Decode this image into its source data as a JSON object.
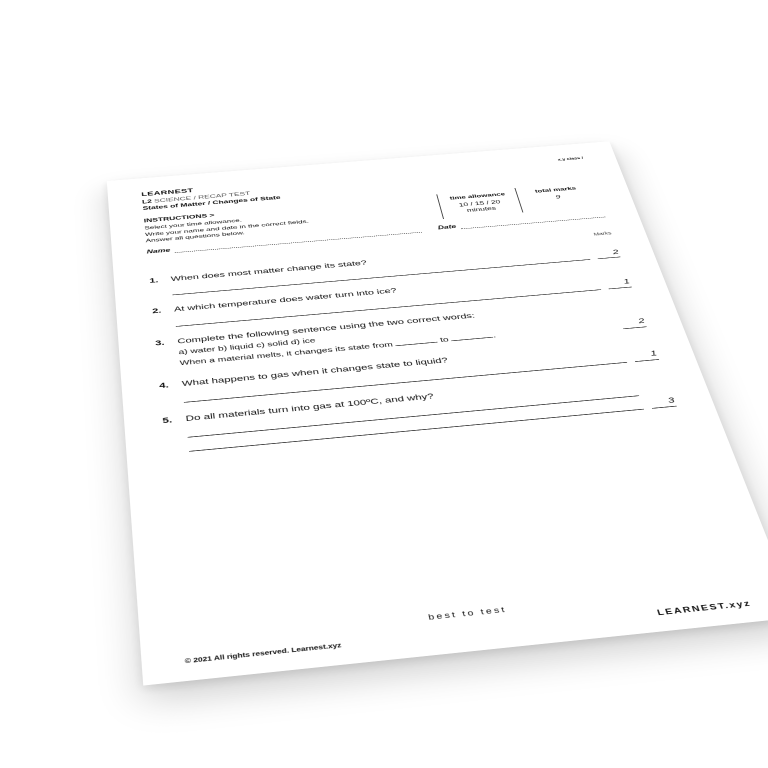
{
  "header": {
    "brand": "LEARNEST",
    "level": "L2",
    "subject": "SCIENCE / RECAP TEST",
    "topic": "States of Matter",
    "subtopic": "Changes of State",
    "classno": "x.y class /"
  },
  "instructions": {
    "title": "INSTRUCTIONS  >",
    "lines": [
      "Select your time allowance.",
      "Write your name and date in the correct fields.",
      "Answer all questions below."
    ]
  },
  "time_allowance": {
    "label": "time allowance",
    "value": "10 / 15 / 20",
    "unit": "minutes"
  },
  "total_marks": {
    "label": "total marks",
    "value": "9"
  },
  "fields": {
    "name_label": "Name",
    "date_label": "Date"
  },
  "marks_header": "Marks",
  "questions": [
    {
      "num": "1.",
      "text": "When does most matter change its state?",
      "marks": "2",
      "answer_lines": 1
    },
    {
      "num": "2.",
      "text": "At which temperature does water turn into ice?",
      "marks": "1",
      "answer_lines": 1
    },
    {
      "num": "3.",
      "text": "Complete the following sentence using the two correct words:",
      "options": "a) water    b) liquid    c) solid    d) ice",
      "fill": {
        "pre": "When a material melts, it changes its state from ",
        "mid": " to ",
        "post": "."
      },
      "marks": "2",
      "answer_lines": 0
    },
    {
      "num": "4.",
      "text": "What happens to gas when it changes state to liquid?",
      "marks": "1",
      "answer_lines": 1
    },
    {
      "num": "5.",
      "text": "Do all materials turn into gas at 100ºC, and why?",
      "marks": "3",
      "answer_lines": 2
    }
  ],
  "footer": {
    "copyright": "© 2021 All rights reserved. Learnest.xyz",
    "slogan": "best to test",
    "url": "LEARNEST.xyz"
  },
  "style": {
    "page_bg": "#ffffff",
    "text_color": "#111111",
    "rule_color": "#222222",
    "shadow": "rgba(0,0,0,0.18)"
  }
}
